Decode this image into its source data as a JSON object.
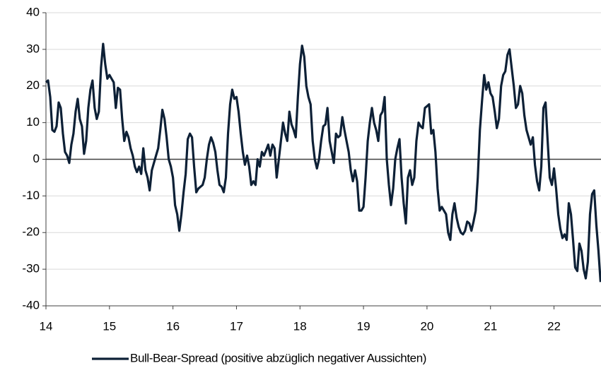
{
  "chart_data": {
    "type": "line",
    "x": [
      14,
      14.033,
      14.067,
      14.1,
      14.133,
      14.167,
      14.2,
      14.233,
      14.267,
      14.3,
      14.333,
      14.367,
      14.4,
      14.433,
      14.467,
      14.5,
      14.533,
      14.567,
      14.6,
      14.633,
      14.667,
      14.7,
      14.733,
      14.767,
      14.8,
      14.833,
      14.867,
      14.9,
      14.933,
      14.967,
      15,
      15.033,
      15.067,
      15.1,
      15.133,
      15.167,
      15.2,
      15.233,
      15.267,
      15.3,
      15.333,
      15.367,
      15.4,
      15.433,
      15.467,
      15.5,
      15.533,
      15.567,
      15.6,
      15.633,
      15.667,
      15.7,
      15.733,
      15.767,
      15.8,
      15.833,
      15.867,
      15.9,
      15.933,
      15.967,
      16,
      16.033,
      16.067,
      16.1,
      16.133,
      16.167,
      16.2,
      16.233,
      16.267,
      16.3,
      16.333,
      16.367,
      16.4,
      16.433,
      16.467,
      16.5,
      16.533,
      16.567,
      16.6,
      16.633,
      16.667,
      16.7,
      16.733,
      16.767,
      16.8,
      16.833,
      16.867,
      16.9,
      16.933,
      16.967,
      17,
      17.033,
      17.067,
      17.1,
      17.133,
      17.167,
      17.2,
      17.233,
      17.267,
      17.3,
      17.333,
      17.367,
      17.4,
      17.433,
      17.467,
      17.5,
      17.533,
      17.567,
      17.6,
      17.633,
      17.667,
      17.7,
      17.733,
      17.767,
      17.8,
      17.833,
      17.867,
      17.9,
      17.933,
      17.967,
      18,
      18.033,
      18.067,
      18.1,
      18.133,
      18.167,
      18.2,
      18.233,
      18.267,
      18.3,
      18.333,
      18.367,
      18.4,
      18.433,
      18.467,
      18.5,
      18.533,
      18.567,
      18.6,
      18.633,
      18.667,
      18.7,
      18.733,
      18.767,
      18.8,
      18.833,
      18.867,
      18.9,
      18.933,
      18.967,
      19,
      19.033,
      19.067,
      19.1,
      19.133,
      19.167,
      19.2,
      19.233,
      19.267,
      19.3,
      19.333,
      19.367,
      19.4,
      19.433,
      19.467,
      19.5,
      19.533,
      19.567,
      19.6,
      19.633,
      19.667,
      19.7,
      19.733,
      19.767,
      19.8,
      19.833,
      19.867,
      19.9,
      19.933,
      19.967,
      20,
      20.033,
      20.067,
      20.1,
      20.133,
      20.167,
      20.2,
      20.233,
      20.267,
      20.3,
      20.333,
      20.367,
      20.4,
      20.433,
      20.467,
      20.5,
      20.533,
      20.567,
      20.6,
      20.633,
      20.667,
      20.7,
      20.733,
      20.767,
      20.8,
      20.833,
      20.867,
      20.9,
      20.933,
      20.967,
      21,
      21.033,
      21.067,
      21.1,
      21.133,
      21.167,
      21.2,
      21.233,
      21.267,
      21.3,
      21.333,
      21.367,
      21.4,
      21.433,
      21.467,
      21.5,
      21.533,
      21.567,
      21.6,
      21.633,
      21.667,
      21.7,
      21.733,
      21.767,
      21.8,
      21.833,
      21.867,
      21.9,
      21.933,
      21.967,
      22,
      22.033,
      22.067,
      22.1,
      22.133,
      22.167,
      22.2,
      22.233,
      22.267,
      22.3,
      22.333,
      22.367,
      22.4,
      22.433,
      22.467,
      22.5,
      22.533,
      22.567,
      22.6,
      22.633,
      22.667,
      22.7,
      22.733
    ],
    "series": [
      {
        "name": "Bull-Bear-Spread (positive abzüglich negativer Aussichten)",
        "color": "#0d2036",
        "values": [
          21,
          21.5,
          17,
          8,
          7.5,
          9,
          15.5,
          14,
          7,
          2,
          1,
          -1,
          4,
          7,
          13,
          16.5,
          11,
          9,
          1.5,
          5,
          14,
          19,
          21.5,
          14,
          11,
          13,
          25,
          31.5,
          26,
          22,
          23,
          22,
          21,
          14,
          19.5,
          19,
          11,
          5,
          7.5,
          6,
          3,
          1,
          -2,
          -3.5,
          -2,
          -4,
          3,
          -3,
          -5,
          -8.5,
          -3,
          -1,
          1,
          3,
          8,
          13.5,
          11,
          6,
          0,
          -2,
          -5,
          -12.5,
          -15,
          -19.5,
          -15,
          -9,
          -4,
          5.5,
          7,
          6,
          -2,
          -9,
          -8,
          -7.5,
          -7,
          -5,
          0,
          4,
          6,
          4.5,
          2,
          -3,
          -7,
          -7.5,
          -9,
          -5,
          7,
          15,
          19,
          16.5,
          17,
          13,
          7,
          2,
          -1.5,
          1,
          -2,
          -7,
          -6,
          -7,
          0,
          -2,
          2,
          1,
          2.5,
          4,
          1,
          4,
          3,
          -5,
          0,
          5,
          10,
          7,
          5,
          13,
          9.5,
          8,
          6,
          17,
          26,
          31,
          28,
          20,
          17,
          15,
          5,
          0,
          -2.5,
          0,
          5,
          9,
          9.5,
          14,
          5,
          2,
          -1,
          7,
          6,
          6.5,
          11.5,
          8,
          5,
          2,
          -3,
          -6,
          -3,
          -6,
          -14,
          -14,
          -13,
          -5,
          5,
          10,
          14,
          10,
          8,
          5,
          12,
          13,
          17,
          0,
          -7,
          -12.5,
          -8,
          0,
          3,
          5.5,
          -5,
          -12,
          -17.5,
          -5,
          -3,
          -7,
          -5,
          5,
          10,
          9,
          8.5,
          14,
          14.5,
          15,
          7,
          8,
          2,
          -8,
          -14,
          -13,
          -14,
          -15,
          -20,
          -22,
          -15,
          -12,
          -16,
          -18.5,
          -20,
          -20.5,
          -19.5,
          -17,
          -17.5,
          -19.5,
          -17,
          -14,
          -5,
          8,
          16,
          23,
          19,
          21,
          18,
          17,
          13,
          8.5,
          11,
          20,
          23,
          24,
          28.5,
          30,
          25,
          20,
          14,
          15,
          20,
          18,
          12,
          8,
          6,
          4,
          6,
          -1.5,
          -6,
          -8.5,
          -2,
          14,
          15.5,
          5,
          -5,
          -7,
          -2.5,
          -8,
          -15,
          -19,
          -21.5,
          -20.5,
          -22,
          -12,
          -15,
          -22,
          -29.5,
          -30.5,
          -23,
          -25,
          -30,
          -32.5,
          -28,
          -15,
          -9.5,
          -8.5,
          -18,
          -25,
          -33.5
        ]
      }
    ],
    "xlim": [
      14,
      22.74
    ],
    "xticks": [
      14,
      15,
      16,
      17,
      18,
      19,
      20,
      21,
      22
    ],
    "ylim": [
      -40,
      40
    ],
    "yticks": [
      -40,
      -30,
      -20,
      -10,
      0,
      10,
      20,
      30,
      40
    ],
    "grid": true,
    "legend": "bottom"
  }
}
